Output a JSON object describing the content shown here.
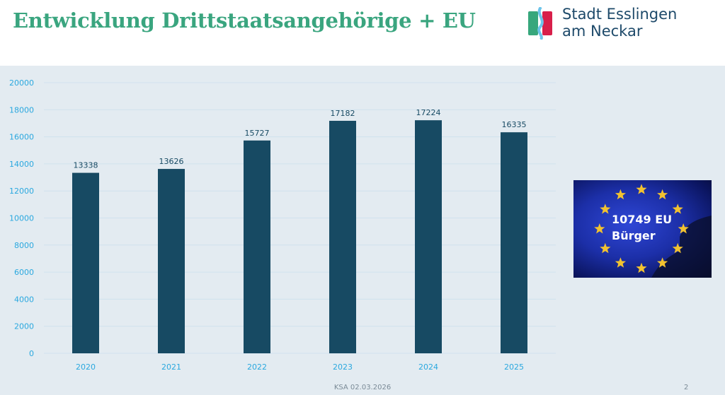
{
  "page": {
    "title": "Entwicklung Drittstaatsangehörige + EU",
    "logo_line1": "Stadt Esslingen",
    "logo_line2": "am Neckar",
    "footer": "KSA 02.03.2026",
    "page_number": "2"
  },
  "eu_box": {
    "line1": "10749 EU",
    "line2": "Bürger",
    "icon": "eu-flag-stars-icon"
  },
  "colors": {
    "title": "#3aa57f",
    "bar": "#174a63",
    "axis_text": "#2aa8df",
    "panel_bg": "#e3ebf1",
    "logo_text": "#1e4a6a"
  },
  "chart_data": {
    "type": "bar",
    "categories": [
      "2020",
      "2021",
      "2022",
      "2023",
      "2024",
      "2025"
    ],
    "values": [
      13338,
      13626,
      15727,
      17182,
      17224,
      16335
    ],
    "data_labels": [
      "13338",
      "13626",
      "15727",
      "17182",
      "17224",
      "16335"
    ],
    "yticks": [
      "0",
      "2000",
      "4000",
      "6000",
      "8000",
      "10000",
      "12000",
      "14000",
      "16000",
      "18000",
      "20000"
    ],
    "ylim": [
      0,
      20000
    ],
    "grid": true,
    "legend": "none"
  }
}
